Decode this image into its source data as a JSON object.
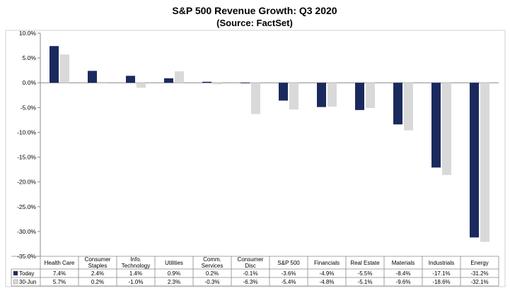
{
  "chart_data": {
    "type": "bar",
    "title": "S&P 500 Revenue Growth: Q3 2020",
    "subtitle": "(Source: FactSet)",
    "categories": [
      "Health Care",
      "Consumer Staples",
      "Info. Technology",
      "Utilities",
      "Comm. Services",
      "Consumer Disc",
      "S&P 500",
      "Financials",
      "Real Estate",
      "Materials",
      "Industrials",
      "Energy"
    ],
    "category_lines": [
      [
        "Health Care"
      ],
      [
        "Consumer",
        "Staples"
      ],
      [
        "Info.",
        "Technology"
      ],
      [
        "Utilities"
      ],
      [
        "Comm.",
        "Services"
      ],
      [
        "Consumer",
        "Disc"
      ],
      [
        "S&P 500"
      ],
      [
        "Financials"
      ],
      [
        "Real Estate"
      ],
      [
        "Materials"
      ],
      [
        "Industrials"
      ],
      [
        "Energy"
      ]
    ],
    "series": [
      {
        "name": "Today",
        "color": "#1a2a5e",
        "values": [
          7.4,
          2.4,
          1.4,
          0.9,
          0.2,
          -0.1,
          -3.6,
          -4.9,
          -5.5,
          -8.4,
          -17.1,
          -31.2
        ],
        "labels": [
          "7.4%",
          "2.4%",
          "1.4%",
          "0.9%",
          "0.2%",
          "-0.1%",
          "-3.6%",
          "-4.9%",
          "-5.5%",
          "-8.4%",
          "-17.1%",
          "-31.2%"
        ]
      },
      {
        "name": "30-Jun",
        "color": "#d9d9d9",
        "values": [
          5.7,
          0.2,
          -1.0,
          2.3,
          -0.3,
          -6.3,
          -5.4,
          -4.8,
          -5.1,
          -9.6,
          -18.6,
          -32.1
        ],
        "labels": [
          "5.7%",
          "0.2%",
          "-1.0%",
          "2.3%",
          "-0.3%",
          "-6.3%",
          "-5.4%",
          "-4.8%",
          "-5.1%",
          "-9.6%",
          "-18.6%",
          "-32.1%"
        ]
      }
    ],
    "ylim": [
      -35,
      10
    ],
    "yticks": [
      10,
      5,
      0,
      -5,
      -10,
      -15,
      -20,
      -25,
      -30,
      -35
    ],
    "ytick_labels": [
      "10.0%",
      "5.0%",
      "0.0%",
      "-5.0%",
      "-10.0%",
      "-15.0%",
      "-20.0%",
      "-25.0%",
      "-30.0%",
      "-35.0%"
    ],
    "grid": false,
    "legend": "data-table"
  }
}
